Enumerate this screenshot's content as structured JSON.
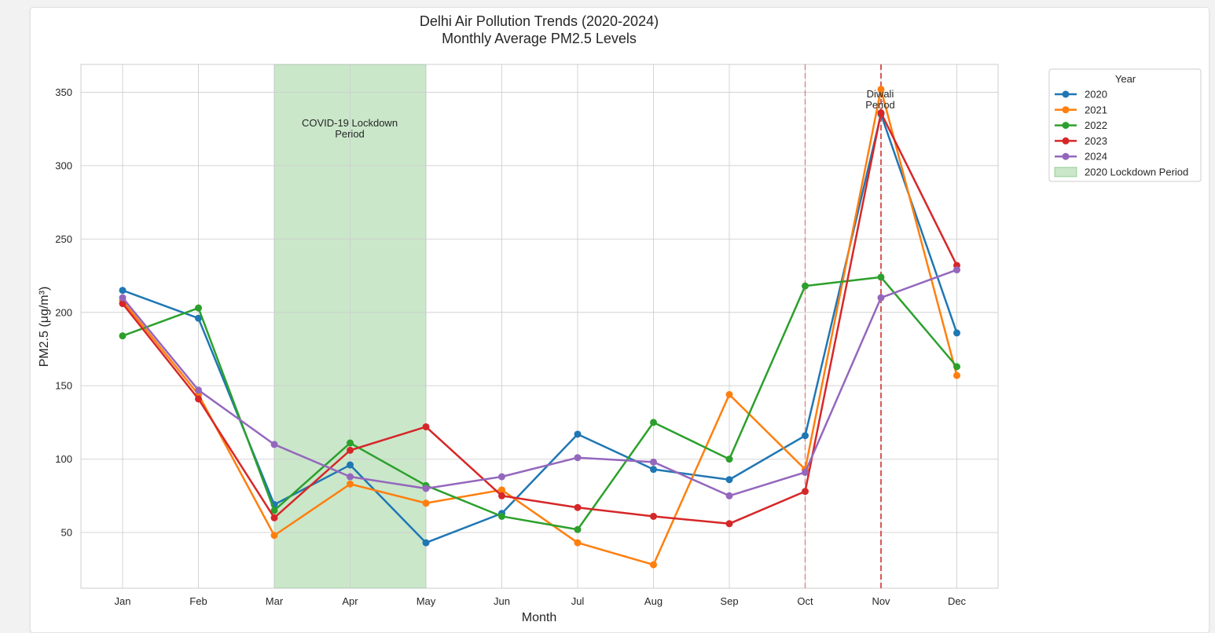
{
  "chart_data": {
    "type": "line",
    "title_line1": "Delhi Air Pollution Trends (2020-2024)",
    "title_line2": "Monthly Average PM2.5 Levels",
    "xlabel": "Month",
    "ylabel": "PM2.5 (μg/m³)",
    "categories": [
      "Jan",
      "Feb",
      "Mar",
      "Apr",
      "May",
      "Jun",
      "Jul",
      "Aug",
      "Sep",
      "Oct",
      "Nov",
      "Dec"
    ],
    "ylim": [
      12,
      369
    ],
    "yticks": [
      50,
      100,
      150,
      200,
      250,
      300,
      350
    ],
    "grid": true,
    "series": [
      {
        "name": "2020",
        "color": "#1f77b4",
        "values": [
          215,
          196,
          69,
          96,
          43,
          63,
          117,
          93,
          86,
          116,
          335,
          186
        ]
      },
      {
        "name": "2021",
        "color": "#ff7f0e",
        "values": [
          208,
          144,
          48,
          83,
          70,
          79,
          43,
          28,
          144,
          93,
          352,
          157
        ]
      },
      {
        "name": "2022",
        "color": "#2ca02c",
        "values": [
          184,
          203,
          65,
          111,
          82,
          61,
          52,
          125,
          100,
          218,
          224,
          163
        ]
      },
      {
        "name": "2023",
        "color": "#d62728",
        "values": [
          206,
          141,
          60,
          106,
          122,
          75,
          67,
          61,
          56,
          78,
          336,
          232
        ]
      },
      {
        "name": "2024",
        "color": "#9467bd",
        "values": [
          210,
          147,
          110,
          88,
          80,
          88,
          101,
          98,
          75,
          91,
          210,
          229
        ]
      }
    ],
    "lockdown": {
      "start_month": "Mar",
      "end_month": "May",
      "color": "#2ca02c",
      "label_line1": "COVID-19 Lockdown",
      "label_line2": "Period",
      "legend_label": "2020 Lockdown Period"
    },
    "diwali": {
      "months": [
        "Oct",
        "Nov"
      ],
      "color": "#d62728",
      "label_line1": "Diwali",
      "label_line2": "Period"
    },
    "legend": {
      "title": "Year",
      "position": "outside-top-right"
    }
  }
}
